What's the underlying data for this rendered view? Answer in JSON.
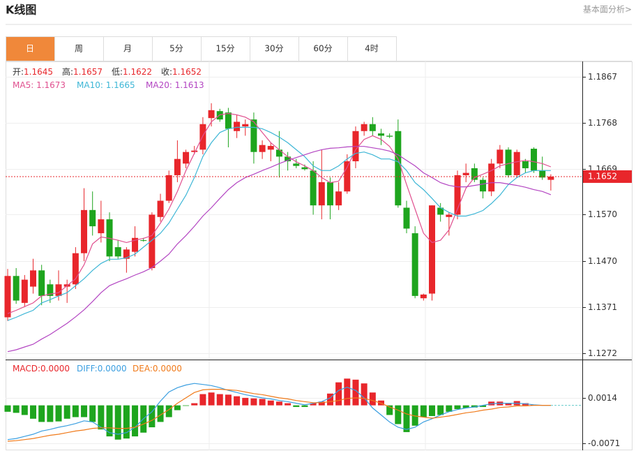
{
  "header": {
    "title": "K线图",
    "link": "基本面分析>"
  },
  "tabs": [
    "日",
    "周",
    "月",
    "5分",
    "15分",
    "30分",
    "60分",
    "4时"
  ],
  "active_tab": 0,
  "chart_data": [
    {
      "type": "candlestick",
      "readout_labels": [
        "开:",
        "高:",
        "低:",
        "收:"
      ],
      "up_color": "#e8262b",
      "down_color": "#1ea51e",
      "open": [
        1.1349,
        1.1438,
        1.138,
        1.1415,
        1.145,
        1.142,
        1.1395,
        1.1415,
        1.142,
        1.1487,
        1.158,
        1.153,
        1.156,
        1.15,
        1.1475,
        1.149,
        1.1515,
        1.1455,
        1.1565,
        1.16,
        1.1655,
        1.168,
        1.1705,
        1.171,
        1.1778,
        1.1793,
        1.179,
        1.175,
        1.176,
        1.1775,
        1.1705,
        1.171,
        1.171,
        1.1695,
        1.168,
        1.1672,
        1.1665,
        1.159,
        1.164,
        1.159,
        1.162,
        1.1685,
        1.175,
        1.1765,
        1.1745,
        1.174,
        1.175,
        1.1585,
        1.153,
        1.139,
        1.14,
        1.1585,
        1.1565,
        1.157,
        1.1655,
        1.167,
        1.1645,
        1.162,
        1.168,
        1.171,
        1.1655,
        1.1685,
        1.1712,
        1.1665,
        1.1645
      ],
      "high": [
        1.1453,
        1.1455,
        1.144,
        1.1475,
        1.1462,
        1.143,
        1.145,
        1.143,
        1.15,
        1.1627,
        1.162,
        1.16,
        1.1575,
        1.1515,
        1.15,
        1.1545,
        1.152,
        1.1575,
        1.1615,
        1.1665,
        1.173,
        1.171,
        1.1718,
        1.178,
        1.181,
        1.1798,
        1.18,
        1.1785,
        1.1775,
        1.179,
        1.173,
        1.1725,
        1.175,
        1.1705,
        1.169,
        1.1678,
        1.1685,
        1.171,
        1.165,
        1.164,
        1.17,
        1.176,
        1.177,
        1.178,
        1.1755,
        1.1745,
        1.1775,
        1.16,
        1.1545,
        1.14,
        1.159,
        1.1595,
        1.1575,
        1.1665,
        1.168,
        1.168,
        1.165,
        1.169,
        1.172,
        1.1715,
        1.171,
        1.169,
        1.1715,
        1.1695,
        1.1657
      ],
      "low": [
        1.1341,
        1.1378,
        1.1372,
        1.14,
        1.1375,
        1.138,
        1.1385,
        1.138,
        1.141,
        1.147,
        1.1525,
        1.151,
        1.147,
        1.1475,
        1.1445,
        1.148,
        1.1512,
        1.145,
        1.1555,
        1.1595,
        1.164,
        1.167,
        1.17,
        1.17,
        1.176,
        1.177,
        1.1715,
        1.1735,
        1.174,
        1.168,
        1.169,
        1.1685,
        1.165,
        1.1665,
        1.167,
        1.1665,
        1.157,
        1.156,
        1.156,
        1.158,
        1.1615,
        1.167,
        1.174,
        1.174,
        1.172,
        1.1735,
        1.1585,
        1.153,
        1.139,
        1.1385,
        1.1385,
        1.1555,
        1.1525,
        1.156,
        1.164,
        1.164,
        1.1605,
        1.161,
        1.167,
        1.165,
        1.165,
        1.166,
        1.166,
        1.1645,
        1.1622
      ],
      "close": [
        1.1438,
        1.1385,
        1.143,
        1.145,
        1.1395,
        1.1395,
        1.142,
        1.142,
        1.1487,
        1.158,
        1.1545,
        1.156,
        1.148,
        1.148,
        1.1495,
        1.152,
        1.1514,
        1.157,
        1.16,
        1.1655,
        1.169,
        1.1705,
        1.1708,
        1.1765,
        1.1795,
        1.1775,
        1.1755,
        1.177,
        1.1765,
        1.1705,
        1.172,
        1.1718,
        1.1695,
        1.1685,
        1.1675,
        1.1668,
        1.159,
        1.164,
        1.159,
        1.162,
        1.1685,
        1.175,
        1.1765,
        1.175,
        1.174,
        1.1738,
        1.159,
        1.154,
        1.1395,
        1.1398,
        1.159,
        1.157,
        1.157,
        1.1655,
        1.166,
        1.1645,
        1.162,
        1.168,
        1.171,
        1.1655,
        1.1705,
        1.167,
        1.1665,
        1.165,
        1.1652
      ],
      "series": [
        {
          "name": "MA5: ",
          "color": "#e0508f",
          "values": [
            1.1357,
            1.1364,
            1.1372,
            1.138,
            1.1395,
            1.1399,
            1.1402,
            1.1417,
            1.1432,
            1.1462,
            1.1507,
            1.1522,
            1.1519,
            1.1515,
            1.151,
            1.1515,
            1.1519,
            1.1525,
            1.1552,
            1.1582,
            1.162,
            1.1665,
            1.1702,
            1.174,
            1.177,
            1.1785,
            1.1788,
            1.1785,
            1.178,
            1.177,
            1.1747,
            1.1725,
            1.171,
            1.1695,
            1.1684,
            1.1675,
            1.1665,
            1.165,
            1.1639,
            1.1642,
            1.1672,
            1.171,
            1.1732,
            1.174,
            1.1732,
            1.1717,
            1.169,
            1.1635,
            1.1582,
            1.153,
            1.151,
            1.1515,
            1.1537,
            1.1582,
            1.1627,
            1.165,
            1.1657,
            1.1665,
            1.1675,
            1.168,
            1.1684,
            1.1687,
            1.1684,
            1.168,
            1.1673
          ]
        },
        {
          "name": "MA10: ",
          "color": "#3db6d6",
          "values": [
            1.1342,
            1.1349,
            1.1357,
            1.1364,
            1.138,
            1.1387,
            1.1395,
            1.1402,
            1.1417,
            1.1432,
            1.145,
            1.1465,
            1.1474,
            1.1474,
            1.1477,
            1.1485,
            1.15,
            1.1515,
            1.153,
            1.1552,
            1.1582,
            1.1612,
            1.165,
            1.1695,
            1.1725,
            1.1747,
            1.1755,
            1.1758,
            1.1758,
            1.1758,
            1.1755,
            1.1747,
            1.1737,
            1.1725,
            1.171,
            1.1695,
            1.1675,
            1.1665,
            1.1665,
            1.1675,
            1.169,
            1.1702,
            1.1705,
            1.1699,
            1.169,
            1.169,
            1.1684,
            1.1665,
            1.1639,
            1.1624,
            1.1605,
            1.1585,
            1.1575,
            1.1567,
            1.1567,
            1.1572,
            1.1579,
            1.1594,
            1.1612,
            1.1635,
            1.165,
            1.166,
            1.1665,
            1.1665,
            1.1665
          ]
        },
        {
          "name": "MA20: ",
          "color": "#b345c2",
          "values": [
            1.1275,
            1.1279,
            1.1285,
            1.1291,
            1.1302,
            1.1312,
            1.1324,
            1.1336,
            1.135,
            1.1365,
            1.1383,
            1.1402,
            1.1417,
            1.1425,
            1.1432,
            1.144,
            1.1447,
            1.1456,
            1.147,
            1.1485,
            1.1507,
            1.1525,
            1.1545,
            1.1567,
            1.1585,
            1.1605,
            1.1624,
            1.1639,
            1.165,
            1.1657,
            1.1665,
            1.1672,
            1.168,
            1.1687,
            1.1693,
            1.1699,
            1.1705,
            1.171,
            1.1713,
            1.1714,
            1.1716,
            1.1717,
            1.1717,
            1.1714,
            1.1711,
            1.1707,
            1.1699,
            1.1687,
            1.1675,
            1.166,
            1.165,
            1.1639,
            1.1633,
            1.163,
            1.163,
            1.1633,
            1.1636,
            1.1639,
            1.1639,
            1.1636,
            1.1633,
            1.1629,
            1.1624,
            1.162,
            1.1613
          ]
        }
      ],
      "ylim": [
        1.1258,
        1.19
      ],
      "yticks": [
        1.1272,
        1.1371,
        {
          "value": 1.147,
          "label": "1.1470"
        },
        {
          "value": 1.157,
          "label": "1.1570"
        },
        1.1669,
        1.1768,
        1.1867
      ],
      "grid": true
    },
    {
      "type": "macd",
      "up_color": "#e8262b",
      "down_color": "#1ea51e",
      "series": [
        {
          "name": "MACD:",
          "value_label": "0.0000",
          "color": "#e8262b",
          "values": [
            -0.0012,
            -0.0014,
            -0.0018,
            -0.0025,
            -0.0031,
            -0.0031,
            -0.003,
            -0.0025,
            -0.0022,
            -0.0022,
            -0.0031,
            -0.0045,
            -0.0058,
            -0.0064,
            -0.0062,
            -0.0058,
            -0.0051,
            -0.0041,
            -0.0031,
            -0.0022,
            -0.0009,
            -0.0001,
            0.0004,
            0.0021,
            0.0024,
            0.0021,
            0.002,
            0.0017,
            0.0014,
            0.0013,
            0.0012,
            0.0009,
            0.0007,
            0.0004,
            -0.0003,
            -0.0003,
            0.0004,
            0.0007,
            0.0022,
            0.0043,
            0.005,
            0.0048,
            0.0041,
            0.0024,
            0.0009,
            -0.0018,
            -0.0035,
            -0.005,
            -0.0038,
            -0.0022,
            -0.002,
            -0.0018,
            -0.0012,
            -0.0007,
            -0.0005,
            -0.0004,
            -0.0003,
            0.0007,
            0.0007,
            0.0004,
            0.0008,
            0.0004,
            0.0001,
            0,
            0
          ]
        },
        {
          "name": "DIFF:",
          "value_label": "0.0000",
          "color": "#3a9ee0",
          "values": [
            -0.0064,
            -0.0062,
            -0.0058,
            -0.0054,
            -0.0048,
            -0.0045,
            -0.0041,
            -0.0038,
            -0.0034,
            -0.0029,
            -0.0031,
            -0.0041,
            -0.0051,
            -0.0054,
            -0.0051,
            -0.0041,
            -0.0025,
            -0.0012,
            0.0008,
            0.0025,
            0.0033,
            0.0038,
            0.0041,
            0.0039,
            0.0037,
            0.0033,
            0.0028,
            0.0024,
            0.002,
            0.0017,
            0.0014,
            0.0012,
            0.0009,
            0.0007,
            0.0004,
            0.0001,
            0.0004,
            0.0007,
            0.0014,
            0.0028,
            0.0034,
            0.0028,
            0.0014,
            -0.0005,
            -0.0018,
            -0.0031,
            -0.0041,
            -0.0045,
            -0.0041,
            -0.0031,
            -0.0025,
            -0.0018,
            -0.0012,
            -0.0008,
            -0.0005,
            -0.0003,
            0,
            0.0003,
            0.0004,
            0.0004,
            0.0004,
            0.0003,
            0.0001,
            0,
            0
          ]
        },
        {
          "name": "DEA:",
          "value_label": "0.0000",
          "color": "#f07a1a",
          "values": [
            -0.0067,
            -0.0066,
            -0.0064,
            -0.0062,
            -0.0059,
            -0.0056,
            -0.0054,
            -0.0051,
            -0.0048,
            -0.0046,
            -0.0043,
            -0.0042,
            -0.0042,
            -0.0043,
            -0.0043,
            -0.0041,
            -0.0035,
            -0.0028,
            -0.0018,
            -0.0008,
            0.0004,
            0.0014,
            0.0024,
            0.0029,
            0.003,
            0.003,
            0.0029,
            0.0028,
            0.0025,
            0.0022,
            0.002,
            0.0017,
            0.0014,
            0.0012,
            0.0009,
            0.0007,
            0.0005,
            0.0005,
            0.0007,
            0.0009,
            0.0013,
            0.0014,
            0.0013,
            0.0009,
            0.0004,
            -0.0003,
            -0.0009,
            -0.0016,
            -0.002,
            -0.0022,
            -0.0024,
            -0.0022,
            -0.002,
            -0.0017,
            -0.0014,
            -0.0012,
            -0.0009,
            -0.0007,
            -0.0004,
            -0.0003,
            -0.0001,
            -0.0001,
            0,
            0,
            0
          ]
        }
      ],
      "ylim": [
        -0.0084,
        0.0083
      ],
      "yticks": [
        -0.0071,
        0.0014
      ],
      "grid": true
    }
  ]
}
